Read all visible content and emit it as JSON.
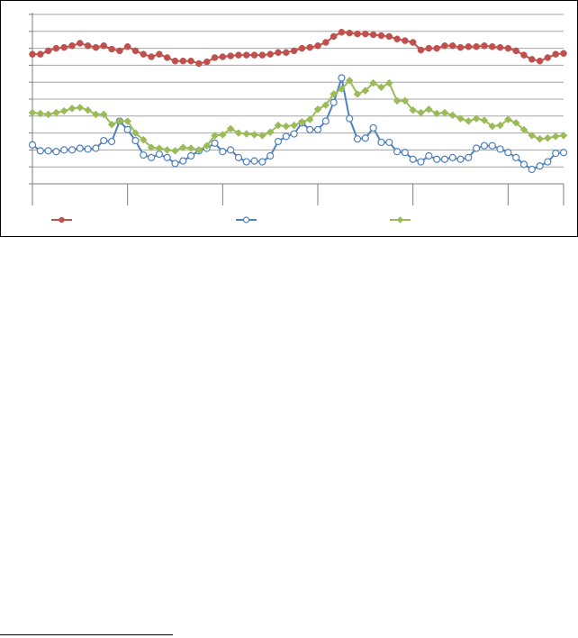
{
  "chart_data": {
    "type": "line",
    "title": "",
    "xlabel": "",
    "ylabel": "",
    "ylim": [
      0,
      10
    ],
    "y_gridlines": [
      1,
      2,
      3,
      4,
      5,
      6,
      7,
      8,
      9,
      10
    ],
    "grid": true,
    "legend_position": "bottom",
    "x_category_count": 68,
    "x_group_boundaries": [
      0,
      12,
      24,
      36,
      48,
      60,
      67
    ],
    "series": [
      {
        "color": "#c0504d",
        "marker": "filled-circle",
        "values": [
          7.65,
          7.65,
          7.85,
          8.0,
          8.05,
          8.15,
          8.3,
          8.15,
          8.05,
          8.15,
          7.95,
          7.85,
          8.1,
          7.85,
          7.65,
          7.5,
          7.65,
          7.45,
          7.25,
          7.25,
          7.25,
          7.1,
          7.2,
          7.45,
          7.5,
          7.55,
          7.6,
          7.6,
          7.6,
          7.6,
          7.65,
          7.75,
          7.75,
          7.85,
          8.0,
          8.05,
          8.15,
          8.35,
          8.7,
          8.95,
          8.9,
          8.85,
          8.85,
          8.8,
          8.75,
          8.7,
          8.55,
          8.45,
          8.35,
          7.9,
          8.0,
          8.0,
          8.15,
          8.15,
          8.05,
          8.1,
          8.1,
          8.15,
          8.1,
          8.05,
          8.0,
          7.85,
          7.6,
          7.35,
          7.25,
          7.45,
          7.65,
          7.7
        ]
      },
      {
        "color": "#4f81bd",
        "marker": "open-circle",
        "values": [
          2.3,
          1.95,
          1.95,
          1.9,
          2.0,
          2.0,
          2.1,
          2.05,
          2.1,
          2.55,
          2.5,
          3.7,
          3.2,
          2.55,
          1.7,
          1.55,
          1.75,
          1.55,
          1.2,
          1.35,
          1.65,
          1.95,
          2.1,
          2.4,
          1.9,
          2.0,
          1.55,
          1.3,
          1.35,
          1.3,
          1.65,
          2.5,
          2.8,
          2.95,
          3.6,
          3.2,
          3.2,
          3.7,
          4.8,
          6.25,
          3.85,
          2.65,
          2.7,
          3.3,
          2.45,
          2.45,
          1.9,
          1.85,
          1.45,
          1.3,
          1.65,
          1.45,
          1.45,
          1.55,
          1.45,
          1.55,
          2.1,
          2.25,
          2.25,
          2.05,
          1.85,
          1.55,
          1.15,
          0.85,
          1.05,
          1.3,
          1.8,
          1.85
        ]
      },
      {
        "color": "#9bbb59",
        "marker": "filled-diamond",
        "values": [
          4.2,
          4.15,
          4.1,
          4.2,
          4.3,
          4.45,
          4.5,
          4.35,
          4.1,
          4.1,
          3.5,
          3.7,
          3.7,
          3.0,
          2.6,
          2.15,
          2.1,
          2.0,
          1.95,
          2.15,
          2.1,
          2.0,
          2.25,
          2.85,
          2.9,
          3.25,
          3.0,
          2.95,
          2.9,
          2.85,
          3.05,
          3.45,
          3.4,
          3.45,
          3.65,
          3.8,
          4.4,
          4.65,
          5.3,
          5.6,
          6.1,
          5.3,
          5.5,
          5.95,
          5.7,
          5.95,
          4.9,
          4.9,
          4.35,
          4.2,
          4.4,
          4.15,
          4.2,
          4.05,
          3.85,
          3.7,
          3.85,
          3.75,
          3.4,
          3.45,
          3.8,
          3.6,
          3.2,
          2.85,
          2.65,
          2.7,
          2.8,
          2.85
        ]
      }
    ]
  }
}
